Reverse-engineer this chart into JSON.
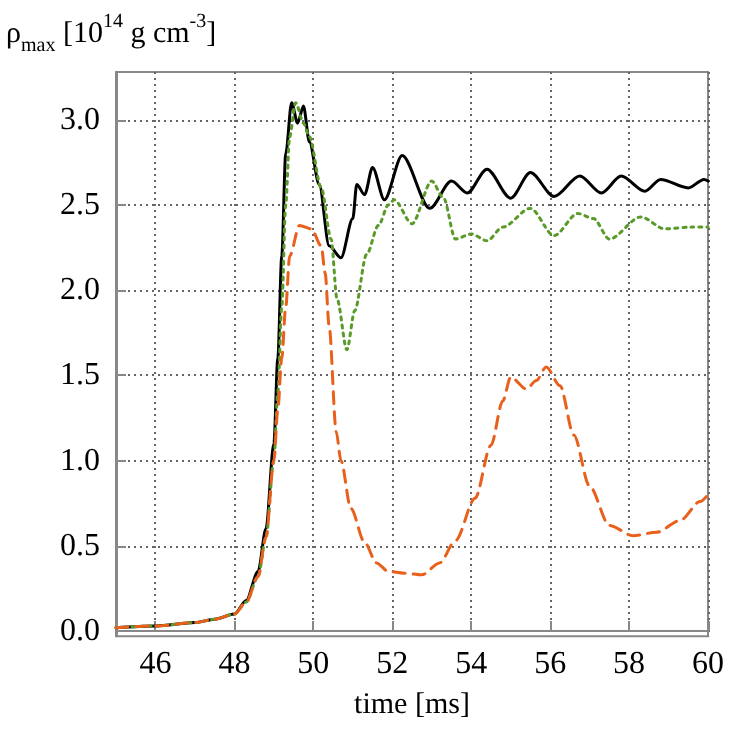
{
  "chart_data": {
    "type": "line",
    "xlabel": "time [ms]",
    "ylabel": "ρ$_{max}$ [10$^{14}$ g cm$^{-3}$]",
    "xlim": [
      45,
      60
    ],
    "xticks": [
      46,
      48,
      50,
      52,
      54,
      56,
      58,
      60
    ],
    "ylim": [
      -0.03,
      3.28
    ],
    "yticks": [
      {
        "value": 0,
        "label": "0.0"
      },
      {
        "value": 0.5,
        "label": "0.5"
      },
      {
        "value": 1,
        "label": "1.0"
      },
      {
        "value": 1.5,
        "label": "1.5"
      },
      {
        "value": 2,
        "label": "2.0"
      },
      {
        "value": 2.5,
        "label": "2.5"
      },
      {
        "value": 3,
        "label": "3.0"
      }
    ],
    "grid": true,
    "marker": "none",
    "series": [
      {
        "color": "#000000",
        "line_style": "solid",
        "x": [
          45,
          46,
          47,
          47.5,
          48,
          48.3,
          48.6,
          48.8,
          49,
          49.1,
          49.2,
          49.3,
          49.45,
          49.6,
          49.75,
          49.9,
          50.15,
          50.4,
          50.7,
          51,
          51.1,
          51.3,
          51.5,
          51.8,
          52.25,
          52.95,
          53.5,
          53.9,
          54.4,
          55,
          55.5,
          56.1,
          56.75,
          57.3,
          57.8,
          58.4,
          58.8,
          59.5,
          59.9,
          60
        ],
        "values": [
          0.02,
          0.03,
          0.05,
          0.07,
          0.1,
          0.18,
          0.35,
          0.6,
          1.1,
          1.6,
          2.2,
          2.8,
          3.1,
          2.98,
          3.08,
          2.87,
          2.62,
          2.26,
          2.19,
          2.42,
          2.62,
          2.56,
          2.72,
          2.53,
          2.79,
          2.48,
          2.64,
          2.57,
          2.71,
          2.54,
          2.69,
          2.55,
          2.67,
          2.57,
          2.67,
          2.58,
          2.65,
          2.6,
          2.65,
          2.64
        ]
      },
      {
        "color": "#5a9a2a",
        "line_style": "dotted",
        "x": [
          45,
          46,
          47,
          47.5,
          48,
          48.3,
          48.6,
          48.8,
          49,
          49.1,
          49.2,
          49.3,
          49.4,
          49.55,
          49.75,
          49.9,
          50.2,
          50.45,
          50.6,
          50.85,
          51.05,
          51.35,
          51.65,
          51.9,
          52.05,
          52.5,
          53,
          53.3,
          53.6,
          54,
          54.4,
          54.8,
          55.5,
          56.1,
          56.7,
          57.1,
          57.5,
          58.3,
          58.9,
          59.6,
          60
        ],
        "values": [
          0.02,
          0.03,
          0.05,
          0.07,
          0.1,
          0.17,
          0.32,
          0.55,
          1.0,
          1.4,
          1.9,
          2.5,
          2.9,
          3.1,
          2.98,
          2.9,
          2.6,
          2.3,
          1.95,
          1.65,
          1.88,
          2.21,
          2.38,
          2.5,
          2.53,
          2.39,
          2.64,
          2.54,
          2.3,
          2.33,
          2.29,
          2.37,
          2.48,
          2.32,
          2.45,
          2.42,
          2.3,
          2.43,
          2.36,
          2.37,
          2.37
        ]
      },
      {
        "color": "#e8601c",
        "line_style": "dashed",
        "x": [
          45,
          46,
          47,
          47.5,
          48,
          48.3,
          48.6,
          48.8,
          49,
          49.1,
          49.2,
          49.3,
          49.4,
          49.65,
          49.95,
          50.2,
          50.3,
          50.4,
          50.58,
          50.7,
          50.95,
          51.3,
          51.6,
          51.9,
          52.3,
          52.75,
          53.2,
          53.6,
          54.1,
          54.5,
          54.8,
          55,
          55.4,
          55.65,
          55.9,
          56.25,
          56.6,
          57,
          57.5,
          58.1,
          58.7,
          59.3,
          59.8,
          60
        ],
        "values": [
          0.02,
          0.03,
          0.05,
          0.07,
          0.1,
          0.17,
          0.32,
          0.55,
          1.0,
          1.3,
          1.6,
          1.9,
          2.2,
          2.38,
          2.36,
          2.26,
          2.1,
          1.79,
          1.17,
          1.0,
          0.72,
          0.52,
          0.4,
          0.35,
          0.34,
          0.33,
          0.4,
          0.53,
          0.78,
          1.09,
          1.35,
          1.49,
          1.42,
          1.47,
          1.55,
          1.44,
          1.15,
          0.85,
          0.62,
          0.56,
          0.58,
          0.65,
          0.76,
          0.8
        ]
      }
    ]
  }
}
